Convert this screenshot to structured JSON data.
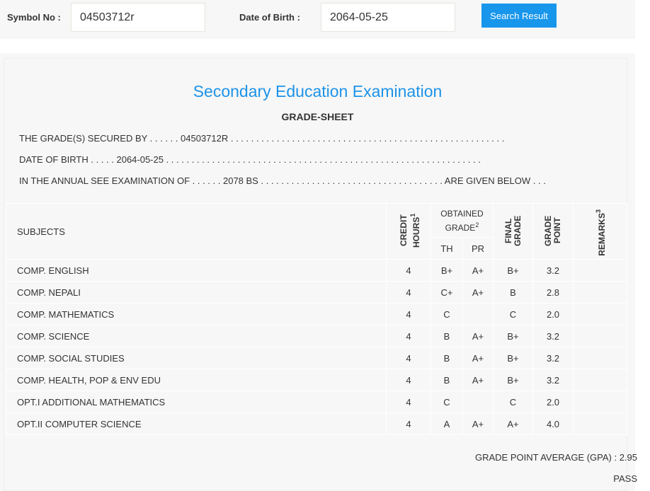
{
  "search": {
    "symbol_label": "Symbol No :",
    "symbol_value": "04503712r",
    "dob_label": "Date of Birth :",
    "dob_value": "2064-05-25",
    "button": "Search Result"
  },
  "sheet": {
    "title": "Secondary Education Examination",
    "subtitle": "GRADE-SHEET",
    "line1": "THE GRADE(S) SECURED BY . . . . . . 04503712R . . . . . . . . . . . . . . . . . . . . . . . . . . . . . . . . . . . . . . . . . . . . . . . . . . . . . .",
    "line2": "DATE OF BIRTH . . . . . 2064-05-25 . . . . . . . . . . . . . . . . . . . . . . . . . . . . . . . . . . . . . . . . . . . . . . . . . . . . . . . . . . . . . .",
    "line3": "IN THE ANNUAL SEE EXAMINATION OF . . . . . . 2078 BS . . . . . . . . . . . . . . . . . . . . . . . . . . . . . . . . . . . . ARE GIVEN BELOW . . .",
    "headers": {
      "subjects": "SUBJECTS",
      "credit": "CREDIT HOURS",
      "credit_sup": "1",
      "obtained": "OBTAINED GRADE",
      "obtained_sup": "2",
      "th": "TH",
      "pr": "PR",
      "final": "FINAL GRADE",
      "gp": "GRADE POINT",
      "remarks": "REMARKS",
      "remarks_sup": "3"
    },
    "rows": [
      {
        "subject": "COMP. ENGLISH",
        "credit": "4",
        "th": "B+",
        "pr": "A+",
        "final": "B+",
        "gp": "3.2",
        "remarks": ""
      },
      {
        "subject": "COMP. NEPALI",
        "credit": "4",
        "th": "C+",
        "pr": "A+",
        "final": "B",
        "gp": "2.8",
        "remarks": ""
      },
      {
        "subject": "COMP. MATHEMATICS",
        "credit": "4",
        "th": "C",
        "pr": "",
        "final": "C",
        "gp": "2.0",
        "remarks": ""
      },
      {
        "subject": "COMP. SCIENCE",
        "credit": "4",
        "th": "B",
        "pr": "A+",
        "final": "B+",
        "gp": "3.2",
        "remarks": ""
      },
      {
        "subject": "COMP. SOCIAL STUDIES",
        "credit": "4",
        "th": "B",
        "pr": "A+",
        "final": "B+",
        "gp": "3.2",
        "remarks": ""
      },
      {
        "subject": "COMP. HEALTH, POP & ENV EDU",
        "credit": "4",
        "th": "B",
        "pr": "A+",
        "final": "B+",
        "gp": "3.2",
        "remarks": ""
      },
      {
        "subject": "OPT.I ADDITIONAL MATHEMATICS",
        "credit": "4",
        "th": "C",
        "pr": "",
        "final": "C",
        "gp": "2.0",
        "remarks": ""
      },
      {
        "subject": "OPT.II COMPUTER SCIENCE",
        "credit": "4",
        "th": "A",
        "pr": "A+",
        "final": "A+",
        "gp": "4.0",
        "remarks": ""
      }
    ],
    "gpa": "GRADE POINT AVERAGE (GPA) : 2.95",
    "result": "PASS"
  },
  "colors": {
    "accent": "#1896ec",
    "title": "#1d93e8",
    "panel": "#f7f7f7"
  }
}
